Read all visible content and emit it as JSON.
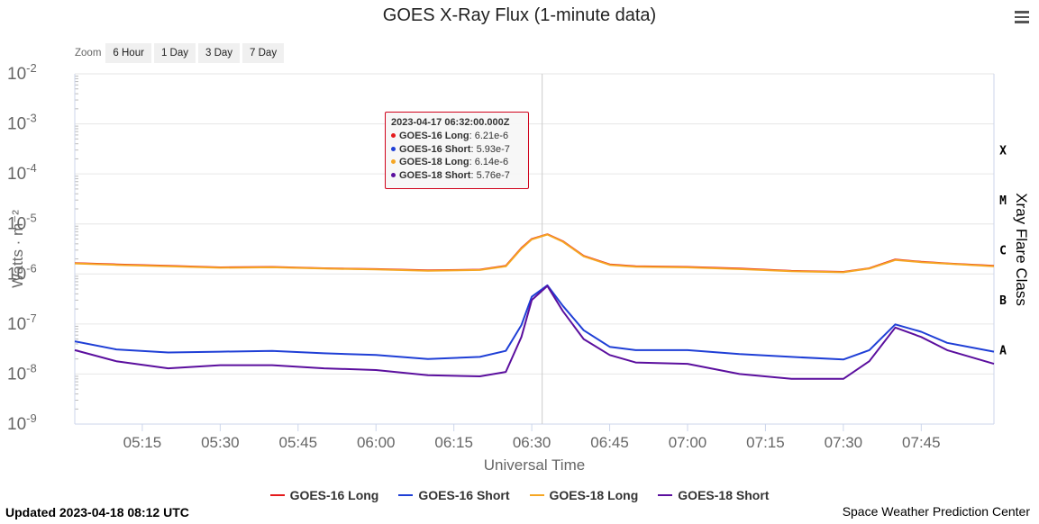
{
  "title": "GOES X-Ray Flux (1-minute data)",
  "zoom": {
    "label": "Zoom",
    "buttons": [
      "6 Hour",
      "1 Day",
      "3 Day",
      "7 Day"
    ]
  },
  "tooltip": {
    "time": "2023-04-17 06:32:00.000Z",
    "rows": [
      {
        "name": "GOES-16 Long",
        "value": "6.21e-6",
        "color": "#e41a1c"
      },
      {
        "name": "GOES-16 Short",
        "value": "5.93e-7",
        "color": "#1f3fd6"
      },
      {
        "name": "GOES-18 Long",
        "value": "6.14e-6",
        "color": "#f5a623"
      },
      {
        "name": "GOES-18 Short",
        "value": "5.76e-7",
        "color": "#5b0f9e"
      }
    ]
  },
  "footer": {
    "updated": "Updated 2023-04-18 08:12 UTC",
    "credit": "Space Weather Prediction Center"
  },
  "chart_data": {
    "type": "line",
    "title": "GOES X-Ray Flux (1-minute data)",
    "xlabel": "Universal Time",
    "ylabel": "Watts · m⁻²",
    "y2label": "Xray Flare Class",
    "y_scale": "log",
    "ylim": [
      1e-09,
      0.01
    ],
    "xlim": [
      "05:02",
      "07:59"
    ],
    "x_ticks": [
      "05:15",
      "05:30",
      "05:45",
      "06:00",
      "06:15",
      "06:30",
      "06:45",
      "07:00",
      "07:15",
      "07:30",
      "07:45"
    ],
    "y_ticks": [
      "1e-9",
      "1e-8",
      "1e-7",
      "1e-6",
      "1e-5",
      "1e-4",
      "1e-3",
      "1e-2"
    ],
    "y_tick_exponents": [
      "-9",
      "-8",
      "-7",
      "-6",
      "-5",
      "-4",
      "-3",
      "-2"
    ],
    "flare_classes": [
      {
        "label": "X",
        "flux": 0.0001
      },
      {
        "label": "M",
        "flux": 1e-05
      },
      {
        "label": "C",
        "flux": 1e-06
      },
      {
        "label": "B",
        "flux": 1e-07
      },
      {
        "label": "A",
        "flux": 1e-08
      }
    ],
    "crosshair_x": "06:32",
    "grid": true,
    "legend_position": "bottom",
    "x": [
      "05:02",
      "05:10",
      "05:20",
      "05:30",
      "05:40",
      "05:50",
      "06:00",
      "06:10",
      "06:20",
      "06:25",
      "06:28",
      "06:30",
      "06:33",
      "06:36",
      "06:40",
      "06:45",
      "06:50",
      "07:00",
      "07:10",
      "07:20",
      "07:30",
      "07:35",
      "07:40",
      "07:45",
      "07:50",
      "07:59"
    ],
    "series": [
      {
        "name": "GOES-16 Long",
        "color": "#e41a1c",
        "values": [
          1.65e-06,
          1.55e-06,
          1.45e-06,
          1.35e-06,
          1.38e-06,
          1.3e-06,
          1.25e-06,
          1.18e-06,
          1.22e-06,
          1.45e-06,
          3.3e-06,
          5e-06,
          6.21e-06,
          4.5e-06,
          2.3e-06,
          1.55e-06,
          1.42e-06,
          1.38e-06,
          1.28e-06,
          1.15e-06,
          1.1e-06,
          1.3e-06,
          1.95e-06,
          1.75e-06,
          1.62e-06,
          1.45e-06
        ]
      },
      {
        "name": "GOES-16 Short",
        "color": "#1f3fd6",
        "values": [
          4.5e-08,
          3.1e-08,
          2.7e-08,
          2.8e-08,
          2.9e-08,
          2.6e-08,
          2.4e-08,
          2e-08,
          2.2e-08,
          2.9e-08,
          9.5e-08,
          3.5e-07,
          5.93e-07,
          2.3e-07,
          7.5e-08,
          3.5e-08,
          3e-08,
          3e-08,
          2.5e-08,
          2.2e-08,
          1.95e-08,
          3e-08,
          9.8e-08,
          7e-08,
          4.2e-08,
          2.8e-08
        ]
      },
      {
        "name": "GOES-18 Long",
        "color": "#f5a623",
        "values": [
          1.62e-06,
          1.52e-06,
          1.42e-06,
          1.33e-06,
          1.36e-06,
          1.28e-06,
          1.23e-06,
          1.16e-06,
          1.2e-06,
          1.42e-06,
          3.2e-06,
          4.9e-06,
          6.14e-06,
          4.4e-06,
          2.25e-06,
          1.52e-06,
          1.4e-06,
          1.35e-06,
          1.25e-06,
          1.13e-06,
          1.08e-06,
          1.28e-06,
          1.9e-06,
          1.72e-06,
          1.6e-06,
          1.42e-06
        ]
      },
      {
        "name": "GOES-18 Short",
        "color": "#5b0f9e",
        "values": [
          3e-08,
          1.8e-08,
          1.3e-08,
          1.5e-08,
          1.5e-08,
          1.3e-08,
          1.2e-08,
          9.5e-09,
          9e-09,
          1.1e-08,
          5.5e-08,
          3e-07,
          5.76e-07,
          1.8e-07,
          5e-08,
          2.4e-08,
          1.7e-08,
          1.6e-08,
          1e-08,
          8e-09,
          8e-09,
          1.8e-08,
          8.5e-08,
          5.5e-08,
          3e-08,
          1.6e-08
        ]
      }
    ]
  }
}
